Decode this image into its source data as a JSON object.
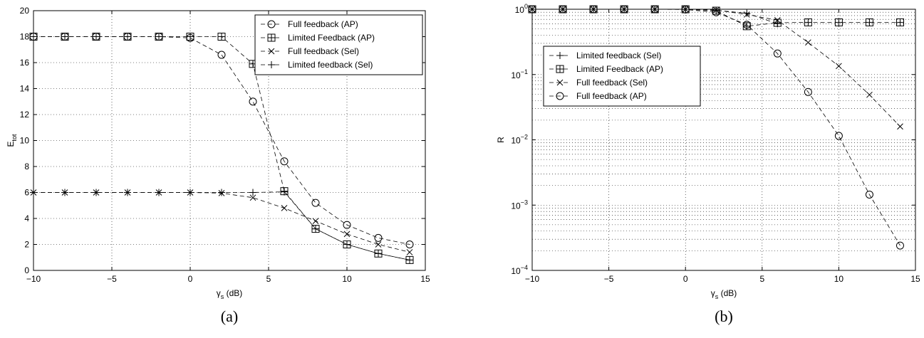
{
  "chart_data": [
    {
      "type": "line",
      "caption": "(a)",
      "xlabel": {
        "main": "γ",
        "sub": "s",
        "rest": " (dB)"
      },
      "ylabel": {
        "main": "E",
        "sub": "tot"
      },
      "xlim": [
        -10,
        15
      ],
      "ylim": [
        0,
        20
      ],
      "xticks": [
        -10,
        -5,
        0,
        5,
        10,
        15
      ],
      "yticks": [
        0,
        2,
        4,
        6,
        8,
        10,
        12,
        14,
        16,
        18,
        20
      ],
      "yscale": "linear",
      "grid": true,
      "legend_position": "top-right",
      "series": [
        {
          "name": "Full feedback (AP)",
          "marker": "circle",
          "x": [
            -10,
            -8,
            -6,
            -4,
            -2,
            0,
            2,
            4,
            6,
            8,
            10,
            12,
            14
          ],
          "y": [
            18,
            18,
            18,
            18,
            18,
            17.9,
            16.6,
            13.0,
            8.4,
            5.2,
            3.5,
            2.5,
            2.0
          ]
        },
        {
          "name": "Limited Feedback (AP)",
          "marker": "boxplus",
          "x": [
            -10,
            -8,
            -6,
            -4,
            -2,
            0,
            2,
            4,
            6,
            8,
            10,
            12,
            14
          ],
          "y": [
            18,
            18,
            18,
            18,
            18,
            18,
            18,
            15.9,
            6.1,
            3.2,
            2.0,
            1.3,
            0.8
          ]
        },
        {
          "name": "Full feedback (Sel)",
          "marker": "x",
          "x": [
            -10,
            -8,
            -6,
            -4,
            -2,
            0,
            2,
            4,
            6,
            8,
            10,
            12,
            14
          ],
          "y": [
            6,
            6,
            6,
            6,
            6,
            6,
            5.95,
            5.6,
            4.8,
            3.8,
            2.8,
            2.0,
            1.4
          ]
        },
        {
          "name": "Limited feedback (Sel)",
          "marker": "plus",
          "x": [
            -10,
            -8,
            -6,
            -4,
            -2,
            0,
            2,
            4,
            6,
            8,
            10,
            12,
            14
          ],
          "y": [
            6,
            6,
            6,
            6,
            6,
            6,
            6,
            6,
            6.05,
            3.2,
            2.0,
            1.3,
            0.8
          ]
        }
      ]
    },
    {
      "type": "line",
      "caption": "(b)",
      "xlabel": {
        "main": "γ",
        "sub": "s",
        "rest": " (dB)"
      },
      "ylabel": {
        "main": "R",
        "sub": ""
      },
      "xlim": [
        -10,
        15
      ],
      "ylim": [
        0.0001,
        1
      ],
      "xticks": [
        -10,
        -5,
        0,
        5,
        10,
        15
      ],
      "yticks": [
        0.0001,
        0.001,
        0.01,
        0.1,
        1
      ],
      "ytick_labels": [
        {
          "base": "10",
          "exp": "−4"
        },
        {
          "base": "10",
          "exp": "−3"
        },
        {
          "base": "10",
          "exp": "−2"
        },
        {
          "base": "10",
          "exp": "−1"
        },
        {
          "base": "10",
          "exp": "0"
        }
      ],
      "yscale": "log",
      "grid": true,
      "legend_position": "middle-left",
      "series": [
        {
          "name": "Limited feedback (Sel)",
          "marker": "plus",
          "x": [
            -10,
            -8,
            -6,
            -4,
            -2,
            0,
            2,
            4,
            6
          ],
          "y": [
            1,
            1,
            1,
            1,
            1,
            1,
            0.96,
            0.87,
            0.6
          ]
        },
        {
          "name": "Limited Feedback (AP)",
          "marker": "boxplus",
          "x": [
            -10,
            -8,
            -6,
            -4,
            -2,
            0,
            2,
            4,
            6,
            8,
            10,
            12,
            14
          ],
          "y": [
            1,
            1,
            1,
            1,
            1,
            1,
            0.95,
            0.55,
            0.62,
            0.63,
            0.63,
            0.63,
            0.63
          ]
        },
        {
          "name": "Full feedback (Sel)",
          "marker": "x",
          "x": [
            -10,
            -8,
            -6,
            -4,
            -2,
            0,
            2,
            4,
            6,
            8,
            10,
            12,
            14
          ],
          "y": [
            1,
            1,
            1,
            1,
            1,
            1,
            0.97,
            0.83,
            0.68,
            0.31,
            0.135,
            0.049,
            0.016
          ]
        },
        {
          "name": "Full feedback (AP)",
          "marker": "circle",
          "x": [
            -10,
            -8,
            -6,
            -4,
            -2,
            0,
            2,
            4,
            6,
            8,
            10,
            12,
            14
          ],
          "y": [
            1,
            1,
            1,
            1,
            1,
            0.99,
            0.9,
            0.58,
            0.21,
            0.054,
            0.0115,
            0.00145,
            0.00024
          ]
        }
      ]
    }
  ]
}
